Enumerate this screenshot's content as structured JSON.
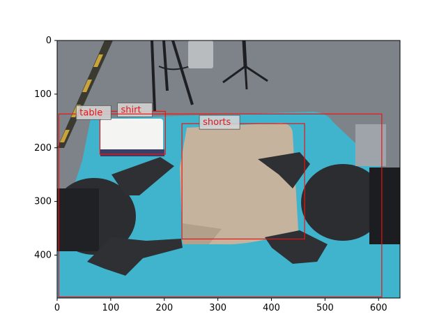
{
  "figure": {
    "image_description_colors": {
      "floor": "#7d8288",
      "table_cloth": "#3fb6cf",
      "shorts": "#c8b49f",
      "shirt": "#f3f3f1",
      "gripper": "#2a2c2f"
    },
    "image_size": {
      "width": 640,
      "height": 480
    },
    "x_ticks": [
      0,
      100,
      200,
      300,
      400,
      500,
      600
    ],
    "y_ticks": [
      0,
      100,
      200,
      300,
      400
    ],
    "box_color": "#e81515",
    "label_bg": "#d7d7d7"
  },
  "detections": [
    {
      "label": "shirt",
      "x0": 80,
      "y0": 132,
      "x1": 202,
      "y1": 212
    },
    {
      "label": "table",
      "x0": 3,
      "y0": 137,
      "x1": 606,
      "y1": 478
    },
    {
      "label": "shorts",
      "x0": 233,
      "y0": 155,
      "x1": 462,
      "y1": 370
    }
  ]
}
